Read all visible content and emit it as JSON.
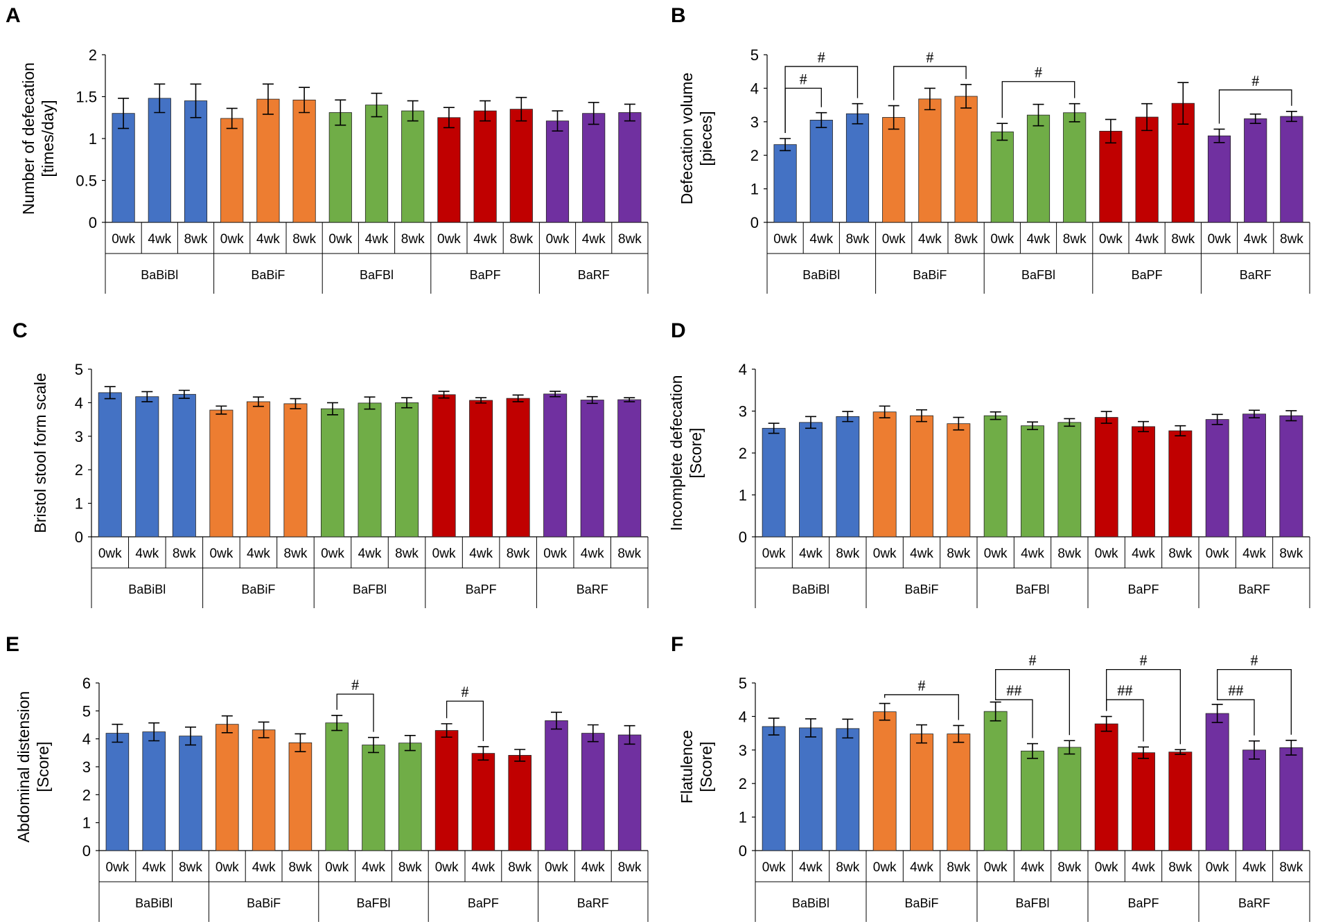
{
  "colors": {
    "BaBiBl": "#4472C4",
    "BaBiF": "#ED7D31",
    "BaFBl": "#70AD47",
    "BaPF": "#C00000",
    "BaRF": "#7030A0"
  },
  "chart_data": [
    {
      "panel": "A",
      "type": "bar",
      "ylabel": [
        "Number of defecation",
        "[times/day]"
      ],
      "ylim": [
        0,
        2
      ],
      "yticks": [
        "0",
        "0.5",
        "1",
        "1.5",
        "2"
      ],
      "ytick_values": [
        0,
        0.5,
        1,
        1.5,
        2
      ],
      "groups": [
        "BaBiBl",
        "BaBiF",
        "BaFBl",
        "BaPF",
        "BaRF"
      ],
      "categories": [
        "0wk",
        "4wk",
        "8wk"
      ],
      "series": [
        {
          "name": "BaBiBl",
          "values": [
            1.3,
            1.48,
            1.45
          ],
          "errors": [
            0.18,
            0.17,
            0.2
          ]
        },
        {
          "name": "BaBiF",
          "values": [
            1.24,
            1.47,
            1.46
          ],
          "errors": [
            0.12,
            0.18,
            0.15
          ]
        },
        {
          "name": "BaFBl",
          "values": [
            1.31,
            1.4,
            1.33
          ],
          "errors": [
            0.15,
            0.14,
            0.12
          ]
        },
        {
          "name": "BaPF",
          "values": [
            1.25,
            1.33,
            1.35
          ],
          "errors": [
            0.12,
            0.12,
            0.14
          ]
        },
        {
          "name": "BaRF",
          "values": [
            1.21,
            1.3,
            1.31
          ],
          "errors": [
            0.12,
            0.13,
            0.1
          ]
        }
      ],
      "significance": []
    },
    {
      "panel": "B",
      "type": "bar",
      "ylabel": [
        "Defecation volume",
        "[pieces]"
      ],
      "ylim": [
        0,
        5
      ],
      "yticks": [
        "0",
        "1",
        "2",
        "3",
        "4",
        "5"
      ],
      "ytick_values": [
        0,
        1,
        2,
        3,
        4,
        5
      ],
      "groups": [
        "BaBiBl",
        "BaBiF",
        "BaFBl",
        "BaPF",
        "BaRF"
      ],
      "categories": [
        "0wk",
        "4wk",
        "8wk"
      ],
      "series": [
        {
          "name": "BaBiBl",
          "values": [
            2.32,
            3.05,
            3.24
          ],
          "errors": [
            0.18,
            0.22,
            0.3
          ]
        },
        {
          "name": "BaBiF",
          "values": [
            3.13,
            3.68,
            3.76
          ],
          "errors": [
            0.35,
            0.32,
            0.35
          ]
        },
        {
          "name": "BaFBl",
          "values": [
            2.7,
            3.2,
            3.27
          ],
          "errors": [
            0.25,
            0.32,
            0.27
          ]
        },
        {
          "name": "BaPF",
          "values": [
            2.72,
            3.14,
            3.55
          ],
          "errors": [
            0.35,
            0.4,
            0.62
          ]
        },
        {
          "name": "BaRF",
          "values": [
            2.58,
            3.09,
            3.16
          ],
          "errors": [
            0.2,
            0.14,
            0.15
          ]
        }
      ],
      "significance": [
        {
          "group": 0,
          "from": 0,
          "to": 1,
          "level": 4.0,
          "label": "#"
        },
        {
          "group": 0,
          "from": 0,
          "to": 2,
          "level": 4.65,
          "label": "#"
        },
        {
          "group": 1,
          "from": 0,
          "to": 2,
          "level": 4.65,
          "label": "#"
        },
        {
          "group": 2,
          "from": 0,
          "to": 2,
          "level": 4.2,
          "label": "#"
        },
        {
          "group": 4,
          "from": 0,
          "to": 2,
          "level": 3.95,
          "label": "#"
        }
      ]
    },
    {
      "panel": "C",
      "type": "bar",
      "ylabel": [
        "Bristol stool form scale"
      ],
      "ylim": [
        0,
        5
      ],
      "yticks": [
        "0",
        "1",
        "2",
        "3",
        "4",
        "5"
      ],
      "ytick_values": [
        0,
        1,
        2,
        3,
        4,
        5
      ],
      "groups": [
        "BaBiBl",
        "BaBiF",
        "BaFBl",
        "BaPF",
        "BaRF"
      ],
      "categories": [
        "0wk",
        "4wk",
        "8wk"
      ],
      "series": [
        {
          "name": "BaBiBl",
          "values": [
            4.3,
            4.18,
            4.25
          ],
          "errors": [
            0.18,
            0.15,
            0.12
          ]
        },
        {
          "name": "BaBiF",
          "values": [
            3.78,
            4.03,
            3.97
          ],
          "errors": [
            0.12,
            0.14,
            0.15
          ]
        },
        {
          "name": "BaFBl",
          "values": [
            3.82,
            3.99,
            4.0
          ],
          "errors": [
            0.18,
            0.18,
            0.15
          ]
        },
        {
          "name": "BaPF",
          "values": [
            4.24,
            4.07,
            4.13
          ],
          "errors": [
            0.1,
            0.08,
            0.1
          ]
        },
        {
          "name": "BaRF",
          "values": [
            4.26,
            4.08,
            4.09
          ],
          "errors": [
            0.08,
            0.1,
            0.06
          ]
        }
      ],
      "significance": []
    },
    {
      "panel": "D",
      "type": "bar",
      "ylabel": [
        "Incomplete defecation",
        "[Score]"
      ],
      "ylim": [
        0,
        4
      ],
      "yticks": [
        "0",
        "1",
        "2",
        "3",
        "4"
      ],
      "ytick_values": [
        0,
        1,
        2,
        3,
        4
      ],
      "groups": [
        "BaBiBl",
        "BaBiF",
        "BaFBl",
        "BaPF",
        "BaRF"
      ],
      "categories": [
        "0wk",
        "4wk",
        "8wk"
      ],
      "series": [
        {
          "name": "BaBiBl",
          "values": [
            2.59,
            2.73,
            2.87
          ],
          "errors": [
            0.12,
            0.14,
            0.12
          ]
        },
        {
          "name": "BaBiF",
          "values": [
            2.98,
            2.89,
            2.7
          ],
          "errors": [
            0.14,
            0.14,
            0.15
          ]
        },
        {
          "name": "BaFBl",
          "values": [
            2.89,
            2.65,
            2.73
          ],
          "errors": [
            0.09,
            0.09,
            0.09
          ]
        },
        {
          "name": "BaPF",
          "values": [
            2.85,
            2.63,
            2.53
          ],
          "errors": [
            0.14,
            0.12,
            0.12
          ]
        },
        {
          "name": "BaRF",
          "values": [
            2.8,
            2.93,
            2.89
          ],
          "errors": [
            0.12,
            0.09,
            0.12
          ]
        }
      ],
      "significance": []
    },
    {
      "panel": "E",
      "type": "bar",
      "ylabel": [
        "Abdominal distension",
        "[Score]"
      ],
      "ylim": [
        0,
        6
      ],
      "yticks": [
        "0",
        "1",
        "2",
        "3",
        "4",
        "5",
        "6"
      ],
      "ytick_values": [
        0,
        1,
        2,
        3,
        4,
        5,
        6
      ],
      "groups": [
        "BaBiBl",
        "BaBiF",
        "BaFBl",
        "BaPF",
        "BaRF"
      ],
      "categories": [
        "0wk",
        "4wk",
        "8wk"
      ],
      "series": [
        {
          "name": "BaBiBl",
          "values": [
            4.2,
            4.25,
            4.1
          ],
          "errors": [
            0.32,
            0.32,
            0.32
          ]
        },
        {
          "name": "BaBiF",
          "values": [
            4.52,
            4.32,
            3.86
          ],
          "errors": [
            0.3,
            0.28,
            0.32
          ]
        },
        {
          "name": "BaFBl",
          "values": [
            4.57,
            3.78,
            3.85
          ],
          "errors": [
            0.27,
            0.27,
            0.27
          ]
        },
        {
          "name": "BaPF",
          "values": [
            4.3,
            3.48,
            3.41
          ],
          "errors": [
            0.24,
            0.24,
            0.21
          ]
        },
        {
          "name": "BaRF",
          "values": [
            4.65,
            4.2,
            4.14
          ],
          "errors": [
            0.3,
            0.3,
            0.33
          ]
        }
      ],
      "significance": [
        {
          "group": 2,
          "from": 0,
          "to": 1,
          "level": 5.6,
          "label": "#"
        },
        {
          "group": 3,
          "from": 0,
          "to": 1,
          "level": 5.35,
          "label": "#"
        }
      ]
    },
    {
      "panel": "F",
      "type": "bar",
      "ylabel": [
        "Flatulence",
        "[Score]"
      ],
      "ylim": [
        0,
        5
      ],
      "yticks": [
        "0",
        "1",
        "2",
        "3",
        "4",
        "5"
      ],
      "ytick_values": [
        0,
        1,
        2,
        3,
        4,
        5
      ],
      "groups": [
        "BaBiBl",
        "BaBiF",
        "BaFBl",
        "BaPF",
        "BaRF"
      ],
      "categories": [
        "0wk",
        "4wk",
        "8wk"
      ],
      "series": [
        {
          "name": "BaBiBl",
          "values": [
            3.7,
            3.66,
            3.64
          ],
          "errors": [
            0.25,
            0.27,
            0.28
          ]
        },
        {
          "name": "BaBiF",
          "values": [
            4.14,
            3.48,
            3.48
          ],
          "errors": [
            0.25,
            0.27,
            0.25
          ]
        },
        {
          "name": "BaFBl",
          "values": [
            4.15,
            2.97,
            3.08
          ],
          "errors": [
            0.28,
            0.22,
            0.2
          ]
        },
        {
          "name": "BaPF",
          "values": [
            3.78,
            2.92,
            2.94
          ],
          "errors": [
            0.22,
            0.17,
            0.07
          ]
        },
        {
          "name": "BaRF",
          "values": [
            4.09,
            3.0,
            3.07
          ],
          "errors": [
            0.27,
            0.27,
            0.22
          ]
        }
      ],
      "significance": [
        {
          "group": 1,
          "from": 0,
          "to": 2,
          "level": 4.65,
          "label": "#"
        },
        {
          "group": 2,
          "from": 0,
          "to": 1,
          "level": 4.5,
          "label": "##"
        },
        {
          "group": 2,
          "from": 0,
          "to": 2,
          "level": 5.4,
          "label": "#"
        },
        {
          "group": 3,
          "from": 0,
          "to": 1,
          "level": 4.5,
          "label": "##"
        },
        {
          "group": 3,
          "from": 0,
          "to": 2,
          "level": 5.4,
          "label": "#"
        },
        {
          "group": 4,
          "from": 0,
          "to": 1,
          "level": 4.5,
          "label": "##"
        },
        {
          "group": 4,
          "from": 0,
          "to": 2,
          "level": 5.4,
          "label": "#"
        }
      ]
    }
  ]
}
